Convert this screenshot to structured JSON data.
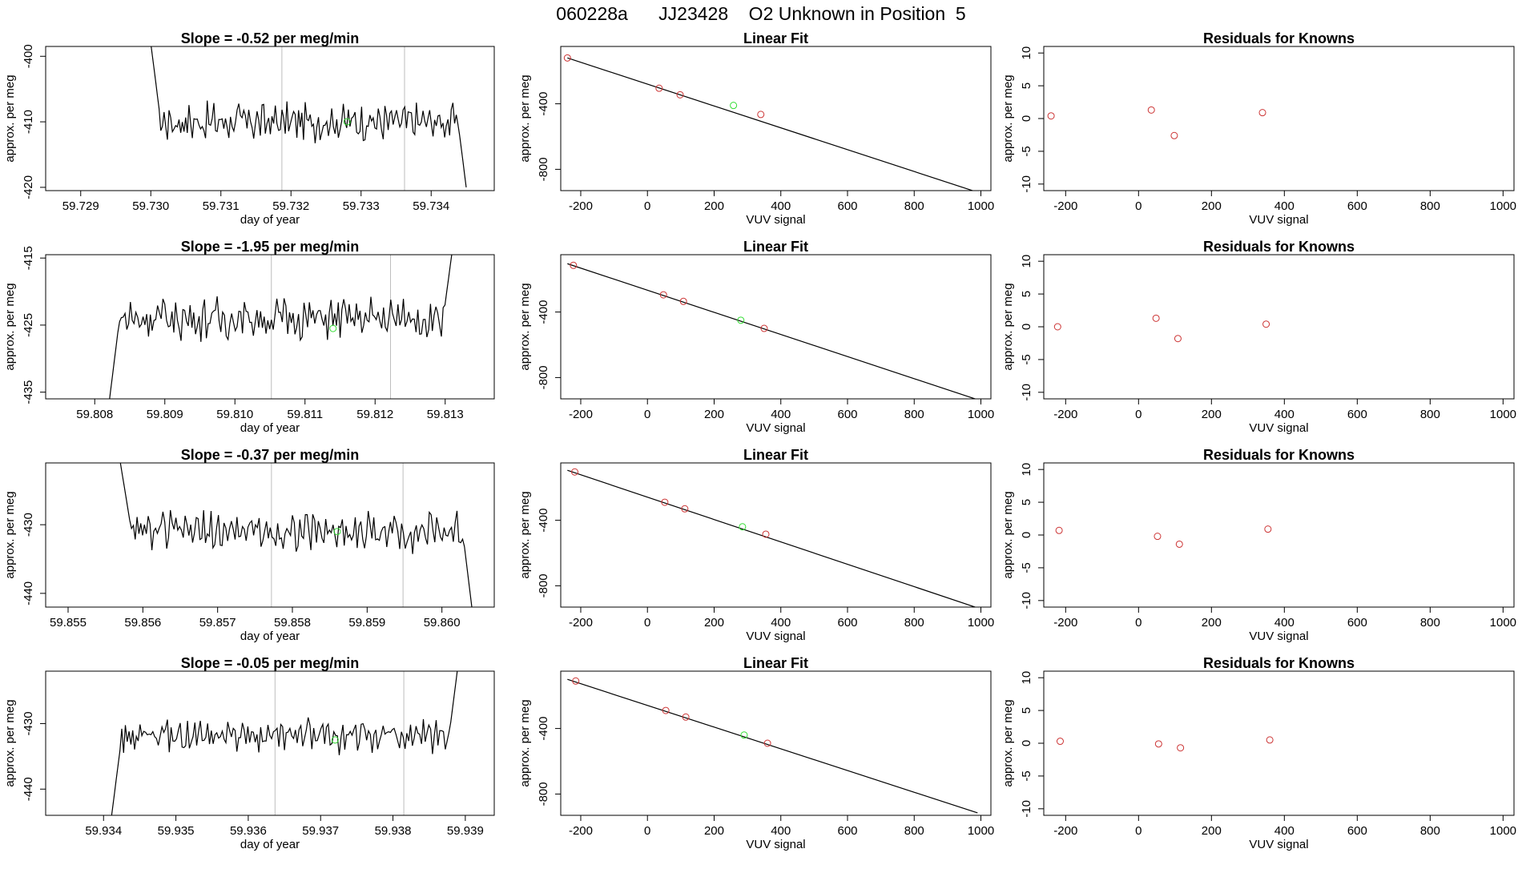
{
  "title": "060228a      JJ23428    O2 Unknown in Position  5",
  "colors": {
    "axis": "#000000",
    "trace": "#000000",
    "vline": "#bebebe",
    "known": "#cc3333",
    "unknown": "#33dd33"
  },
  "chart_data": [
    {
      "type": "line",
      "title": "Slope =  -0.52  per meg/min",
      "xlabel": "day of year",
      "ylabel": "approx. per meg",
      "xlim": [
        59.7285,
        59.7349
      ],
      "ylim": [
        -420.5,
        -398.5
      ],
      "xticks": [
        "59.729",
        "59.730",
        "59.731",
        "59.732",
        "59.733",
        "59.734"
      ],
      "yticks": [
        "-400",
        "-410",
        "-420"
      ],
      "vlines": [
        59.73187,
        59.73362
      ],
      "trace": {
        "x_start": 59.73,
        "x_end": 59.7345,
        "level": -410,
        "noise": 2.2,
        "left_edge": -398,
        "right_edge": -420
      },
      "marker": {
        "x": 59.7328,
        "y": -410
      }
    },
    {
      "type": "scatter",
      "title": "Linear Fit",
      "xlabel": "VUV signal",
      "ylabel": "approx. per meg",
      "xlim": [
        -260,
        1030
      ],
      "ylim": [
        -930,
        -50
      ],
      "xticks": [
        "-200",
        "0",
        "200",
        "400",
        "600",
        "800",
        "1000"
      ],
      "yticks": [
        "-400",
        "-800"
      ],
      "line": [
        [
          -240,
          -120
        ],
        [
          990,
          -940
        ]
      ],
      "known": [
        [
          -240,
          -120
        ],
        [
          35,
          -305
        ],
        [
          98,
          -345
        ],
        [
          340,
          -465
        ]
      ],
      "unknown": [
        [
          258,
          -410
        ]
      ]
    },
    {
      "type": "scatter",
      "title": "Residuals for Knowns",
      "xlabel": "VUV signal",
      "ylabel": "approx. per meg",
      "xlim": [
        -260,
        1030
      ],
      "ylim": [
        -11,
        11
      ],
      "xticks": [
        "-200",
        "0",
        "200",
        "400",
        "600",
        "800",
        "1000"
      ],
      "yticks": [
        "-10",
        "-5",
        "0",
        "5",
        "10"
      ],
      "points": [
        [
          -240,
          0.4
        ],
        [
          35,
          1.3
        ],
        [
          98,
          -2.6
        ],
        [
          340,
          0.9
        ]
      ]
    },
    {
      "type": "line",
      "title": "Slope =  -1.95  per meg/min",
      "xlabel": "day of year",
      "ylabel": "approx. per meg",
      "xlim": [
        59.8073,
        59.8137
      ],
      "ylim": [
        -436,
        -414.5
      ],
      "xticks": [
        "59.808",
        "59.809",
        "59.810",
        "59.811",
        "59.812",
        "59.813"
      ],
      "yticks": [
        "-415",
        "-425",
        "-435"
      ],
      "vlines": [
        59.81052,
        59.81222
      ],
      "trace": {
        "x_start": 59.8082,
        "x_end": 59.8131,
        "level": -424,
        "noise": 2.4,
        "left_edge": -437,
        "right_edge": -414
      },
      "marker": {
        "x": 59.8114,
        "y": -425.5
      }
    },
    {
      "type": "scatter",
      "title": "Linear Fit",
      "xlabel": "VUV signal",
      "ylabel": "approx. per meg",
      "xlim": [
        -260,
        1030
      ],
      "ylim": [
        -930,
        -50
      ],
      "xticks": [
        "-200",
        "0",
        "200",
        "400",
        "600",
        "800",
        "1000"
      ],
      "yticks": [
        "-400",
        "-800"
      ],
      "line": [
        [
          -240,
          -105
        ],
        [
          990,
          -935
        ]
      ],
      "known": [
        [
          -222,
          -115
        ],
        [
          48,
          -295
        ],
        [
          108,
          -335
        ],
        [
          350,
          -500
        ]
      ],
      "unknown": [
        [
          280,
          -450
        ]
      ]
    },
    {
      "type": "scatter",
      "title": "Residuals for Knowns",
      "xlabel": "VUV signal",
      "ylabel": "approx. per meg",
      "xlim": [
        -260,
        1030
      ],
      "ylim": [
        -11,
        11
      ],
      "xticks": [
        "-200",
        "0",
        "200",
        "400",
        "600",
        "800",
        "1000"
      ],
      "yticks": [
        "-10",
        "-5",
        "0",
        "5",
        "10"
      ],
      "points": [
        [
          -222,
          0.0
        ],
        [
          48,
          1.3
        ],
        [
          108,
          -1.8
        ],
        [
          350,
          0.4
        ]
      ]
    },
    {
      "type": "line",
      "title": "Slope =  -0.37  per meg/min",
      "xlabel": "day of year",
      "ylabel": "approx. per meg",
      "xlim": [
        59.8547,
        59.8607
      ],
      "ylim": [
        -442,
        -421
      ],
      "xticks": [
        "59.855",
        "59.856",
        "59.857",
        "59.858",
        "59.859",
        "59.860"
      ],
      "yticks": [
        "-430",
        "-440"
      ],
      "vlines": [
        59.85772,
        59.85948
      ],
      "trace": {
        "x_start": 59.8557,
        "x_end": 59.8604,
        "level": -431,
        "noise": 2.2,
        "left_edge": -421,
        "right_edge": -442
      },
      "marker": {
        "x": 59.8586,
        "y": -431
      }
    },
    {
      "type": "scatter",
      "title": "Linear Fit",
      "xlabel": "VUV signal",
      "ylabel": "approx. per meg",
      "xlim": [
        -260,
        1030
      ],
      "ylim": [
        -930,
        -50
      ],
      "xticks": [
        "-200",
        "0",
        "200",
        "400",
        "600",
        "800",
        "1000"
      ],
      "yticks": [
        "-400",
        "-800"
      ],
      "line": [
        [
          -240,
          -95
        ],
        [
          990,
          -935
        ]
      ],
      "known": [
        [
          -218,
          -105
        ],
        [
          52,
          -290
        ],
        [
          112,
          -330
        ],
        [
          355,
          -485
        ]
      ],
      "unknown": [
        [
          285,
          -440
        ]
      ]
    },
    {
      "type": "scatter",
      "title": "Residuals for Knowns",
      "xlabel": "VUV signal",
      "ylabel": "approx. per meg",
      "xlim": [
        -260,
        1030
      ],
      "ylim": [
        -11,
        11
      ],
      "xticks": [
        "-200",
        "0",
        "200",
        "400",
        "600",
        "800",
        "1000"
      ],
      "yticks": [
        "-10",
        "-5",
        "0",
        "5",
        "10"
      ],
      "points": [
        [
          -218,
          0.7
        ],
        [
          52,
          -0.2
        ],
        [
          112,
          -1.4
        ],
        [
          355,
          0.9
        ]
      ]
    },
    {
      "type": "line",
      "title": "Slope =  -0.05  per meg/min",
      "xlabel": "day of year",
      "ylabel": "approx. per meg",
      "xlim": [
        59.9332,
        59.9394
      ],
      "ylim": [
        -444,
        -422
      ],
      "xticks": [
        "59.934",
        "59.935",
        "59.936",
        "59.937",
        "59.938",
        "59.939"
      ],
      "yticks": [
        "-430",
        "-440"
      ],
      "vlines": [
        59.93637,
        59.93815
      ],
      "trace": {
        "x_start": 59.9341,
        "x_end": 59.9389,
        "level": -432,
        "noise": 2.0,
        "left_edge": -445,
        "right_edge": -421
      },
      "marker": {
        "x": 59.9372,
        "y": -432.5
      }
    },
    {
      "type": "scatter",
      "title": "Linear Fit",
      "xlabel": "VUV signal",
      "ylabel": "approx. per meg",
      "xlim": [
        -260,
        1030
      ],
      "ylim": [
        -930,
        -50
      ],
      "xticks": [
        "-200",
        "0",
        "200",
        "400",
        "600",
        "800",
        "1000"
      ],
      "yticks": [
        "-400",
        "-800"
      ],
      "line": [
        [
          -240,
          -100
        ],
        [
          990,
          -915
        ]
      ],
      "known": [
        [
          -215,
          -110
        ],
        [
          55,
          -290
        ],
        [
          115,
          -330
        ],
        [
          360,
          -490
        ]
      ],
      "unknown": [
        [
          290,
          -440
        ]
      ]
    },
    {
      "type": "scatter",
      "title": "Residuals for Knowns",
      "xlabel": "VUV signal",
      "ylabel": "approx. per meg",
      "xlim": [
        -260,
        1030
      ],
      "ylim": [
        -11,
        11
      ],
      "xticks": [
        "-200",
        "0",
        "200",
        "400",
        "600",
        "800",
        "1000"
      ],
      "yticks": [
        "-10",
        "-5",
        "0",
        "5",
        "10"
      ],
      "points": [
        [
          -215,
          0.3
        ],
        [
          55,
          -0.1
        ],
        [
          115,
          -0.7
        ],
        [
          360,
          0.5
        ]
      ]
    }
  ]
}
